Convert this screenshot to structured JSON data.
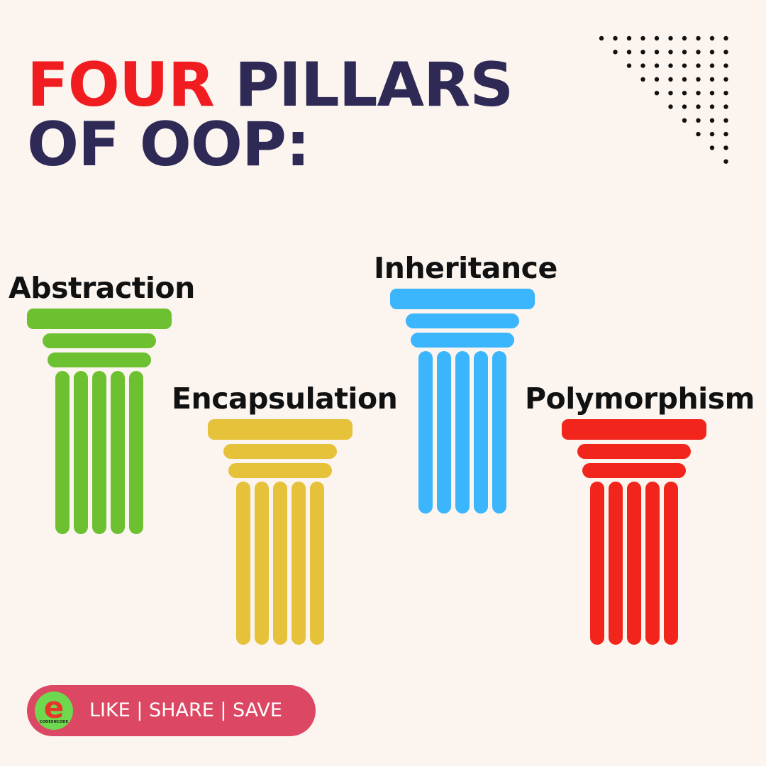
{
  "title": {
    "accent": "FOUR",
    "rest": "PILLARS",
    "line2": "OF OOP:"
  },
  "pillars": [
    {
      "label": "Abstraction",
      "color": "#6DC131"
    },
    {
      "label": "Encapsulation",
      "color": "#E6C23A"
    },
    {
      "label": "Inheritance",
      "color": "#3BB5FB"
    },
    {
      "label": "Polymorphism",
      "color": "#F2251C"
    }
  ],
  "cta": {
    "text": "LIKE | SHARE | SAVE",
    "logo_letter": "e",
    "logo_text": "CODEENCODE",
    "color": "#DC4763"
  },
  "colors": {
    "background": "#FBF4EF",
    "title_dark": "#2E2A55",
    "title_accent": "#F11C20"
  }
}
